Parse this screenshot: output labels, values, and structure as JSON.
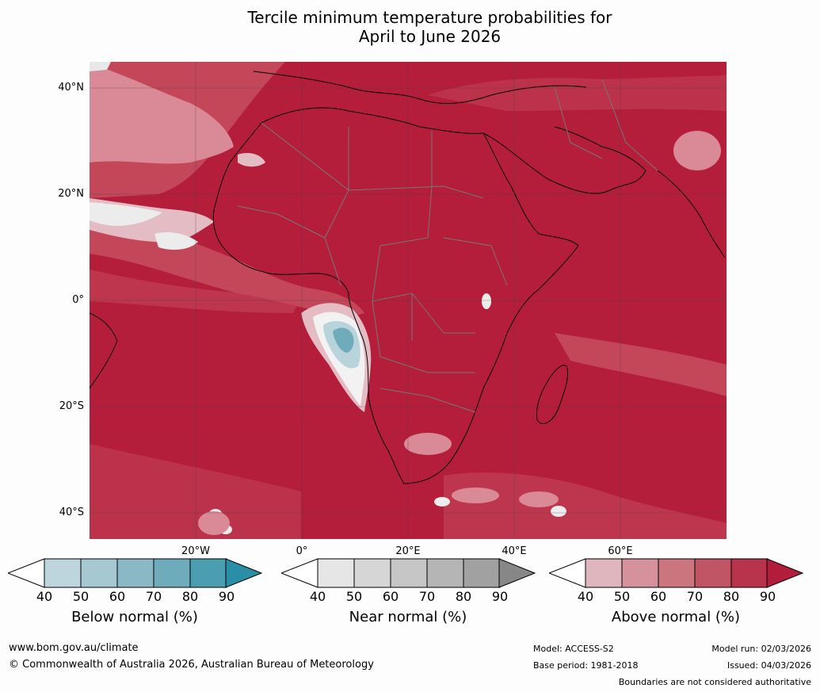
{
  "title": {
    "line1": "Tercile minimum temperature probabilities for",
    "line2": "April to June 2026"
  },
  "axes": {
    "lat_labels": [
      "40°N",
      "20°N",
      "0°",
      "20°S",
      "40°S"
    ],
    "lon_labels": [
      "20°W",
      "0°",
      "20°E",
      "40°E",
      "60°E"
    ],
    "grid": true
  },
  "colors": {
    "ocean_above_high": "#b41e3b",
    "above_mid": "#c95a6c",
    "above_low": "#dca5ae",
    "near": "#e6e6e6",
    "below_low": "#b9d3da",
    "below_mid": "#8fbdc7",
    "coast": "#000000",
    "border": "#777777"
  },
  "colorbars": {
    "below": {
      "label": "Below normal (%)",
      "ticks": [
        "40",
        "50",
        "60",
        "70",
        "80",
        "90"
      ],
      "colors": [
        "#bdd5dc",
        "#a6c9d1",
        "#8ab9c5",
        "#6eacbb",
        "#4b9db0",
        "#2a8ea7"
      ]
    },
    "near": {
      "label": "Near normal (%)",
      "ticks": [
        "40",
        "50",
        "60",
        "70",
        "80",
        "90"
      ],
      "colors": [
        "#e6e6e6",
        "#d6d6d6",
        "#c6c6c6",
        "#b5b5b5",
        "#a1a1a1",
        "#878787"
      ]
    },
    "above": {
      "label": "Above normal (%)",
      "ticks": [
        "40",
        "50",
        "60",
        "70",
        "80",
        "90"
      ],
      "colors": [
        "#dfb6bd",
        "#d5929c",
        "#cb757f",
        "#c05566",
        "#b8344d",
        "#b21d3b"
      ]
    }
  },
  "footer": {
    "website": "www.bom.gov.au/climate",
    "copyright": "© Commonwealth of Australia 2026, Australian Bureau of Meteorology",
    "model": "Model: ACCESS-S2",
    "base_period": "Base period: 1981-2018",
    "model_run": "Model run: 02/03/2026",
    "issued": "Issued: 04/03/2026",
    "disclaimer": "Boundaries are not considered authoritative"
  }
}
